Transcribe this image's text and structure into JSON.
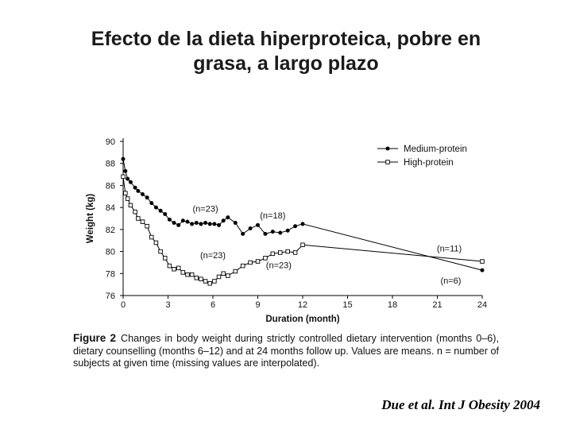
{
  "slide": {
    "title_line1": "Efecto de la dieta hiperproteica, pobre en",
    "title_line2": "grasa, a largo plazo",
    "citation": "Due et al. Int J Obesity 2004"
  },
  "caption": {
    "label": "Figure 2",
    "text": "Changes in body weight during strictly controlled dietary intervention (months 0–6), dietary counselling (months 6–12) and at 24 months follow up. Values are means. n = number of subjects at given time (missing values are interpolated)."
  },
  "colors": {
    "line": "#000000",
    "axis": "#000000",
    "marker_open_fill": "#ffffff"
  },
  "chart_data": {
    "type": "line",
    "title": "",
    "xlabel": "Duration (month)",
    "ylabel": "Weight (kg)",
    "xlim": [
      0,
      24
    ],
    "ylim": [
      76,
      90
    ],
    "x_ticks": [
      0,
      3,
      6,
      9,
      12,
      15,
      18,
      21,
      24
    ],
    "y_ticks": [
      76,
      78,
      80,
      82,
      84,
      86,
      88,
      90
    ],
    "legend_position": "top-right",
    "series": [
      {
        "name": "Medium-protein",
        "marker": "filled-circle",
        "x": [
          0,
          0.15,
          0.3,
          0.5,
          0.8,
          1.0,
          1.3,
          1.6,
          1.9,
          2.2,
          2.5,
          2.8,
          3.1,
          3.4,
          3.7,
          4.0,
          4.3,
          4.6,
          4.9,
          5.2,
          5.5,
          5.8,
          6.1,
          6.4,
          6.7,
          7.0,
          7.5,
          8.0,
          8.5,
          9.0,
          9.5,
          10.0,
          10.5,
          11.0,
          11.5,
          12.0,
          24
        ],
        "values": [
          88.4,
          87.3,
          86.6,
          86.3,
          85.8,
          85.5,
          85.2,
          84.9,
          84.4,
          84.0,
          83.7,
          83.4,
          82.9,
          82.6,
          82.4,
          82.8,
          82.7,
          82.5,
          82.6,
          82.5,
          82.6,
          82.5,
          82.5,
          82.4,
          82.8,
          83.1,
          82.6,
          81.6,
          82.1,
          82.4,
          81.6,
          81.8,
          81.7,
          81.9,
          82.3,
          82.5,
          78.3
        ]
      },
      {
        "name": "High-protein",
        "marker": "open-square",
        "x": [
          0,
          0.15,
          0.3,
          0.5,
          0.8,
          1.0,
          1.3,
          1.6,
          1.9,
          2.2,
          2.5,
          2.8,
          3.1,
          3.4,
          3.7,
          4.0,
          4.3,
          4.6,
          4.9,
          5.2,
          5.5,
          5.8,
          6.1,
          6.4,
          6.7,
          7.0,
          7.5,
          8.0,
          8.5,
          9.0,
          9.5,
          10.0,
          10.5,
          11.0,
          11.5,
          12.0,
          24
        ],
        "values": [
          86.8,
          85.3,
          84.8,
          84.2,
          83.6,
          83.0,
          82.7,
          82.3,
          81.3,
          80.8,
          80.0,
          79.4,
          78.7,
          78.4,
          78.5,
          78.1,
          77.9,
          77.9,
          77.6,
          77.5,
          77.3,
          77.1,
          77.3,
          77.7,
          78.0,
          77.8,
          78.2,
          78.7,
          79.0,
          79.1,
          79.4,
          79.8,
          79.9,
          80.0,
          79.9,
          80.6,
          79.1
        ]
      }
    ],
    "annotations": [
      {
        "text": "(n=23)",
        "x": 5.5,
        "y": 83.6
      },
      {
        "text": "(n=18)",
        "x": 10.0,
        "y": 83.0
      },
      {
        "text": "(n=23)",
        "x": 6.0,
        "y": 79.4
      },
      {
        "text": "(n=23)",
        "x": 10.4,
        "y": 78.5
      },
      {
        "text": "(n=11)",
        "x": 21.8,
        "y": 80.0
      },
      {
        "text": "(n=6)",
        "x": 21.9,
        "y": 77.1
      }
    ]
  }
}
